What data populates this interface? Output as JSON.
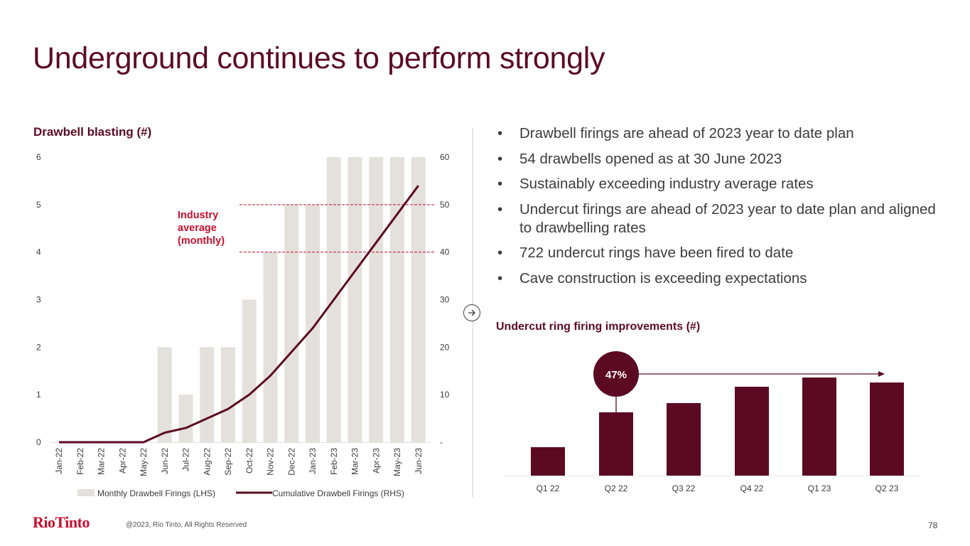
{
  "page": {
    "title": "Underground continues to perform strongly",
    "copyright": "@2023, Rio Tinto, All Rights Reserved",
    "logo_text": "RioTinto",
    "page_number": "78",
    "brand_color": "#5c0a23",
    "accent_color": "#c8102e"
  },
  "bullets": [
    "Drawbell firings are ahead of 2023 year to date plan",
    "54 drawbells opened as at 30 June 2023",
    "Sustainably exceeding industry average rates",
    "Undercut firings are ahead of 2023 year to date plan and aligned to drawbelling rates",
    "722 undercut rings have been fired to date",
    "Cave construction is exceeding expectations"
  ],
  "bullet_glyph": "•",
  "nav": {
    "arrow_icon": "arrow-right-circle-icon"
  },
  "chart_data": [
    {
      "type": "bar",
      "title": "Drawbell blasting (#)",
      "categories": [
        "Jan-22",
        "Feb-22",
        "Mar-22",
        "Apr-22",
        "May-22",
        "Jun-22",
        "Jul-22",
        "Aug-22",
        "Sep-22",
        "Oct-22",
        "Nov-22",
        "Dec-22",
        "Jan-23",
        "Feb-23",
        "Mar-23",
        "Apr-23",
        "May-23",
        "Jun-23"
      ],
      "series": [
        {
          "name": "Monthly Drawbell Firings  (LHS)",
          "type": "bar",
          "axis": "left",
          "color": "#e4e1dc",
          "values": [
            0,
            0,
            0,
            0,
            0,
            2,
            1,
            2,
            2,
            3,
            4,
            5,
            5,
            6,
            6,
            6,
            6,
            6
          ]
        },
        {
          "name": "Cumulative Drawbell Firings  (RHS)",
          "type": "line",
          "axis": "right",
          "color": "#5c0a23",
          "values": [
            0,
            0,
            0,
            0,
            0,
            2,
            3,
            5,
            7,
            10,
            14,
            19,
            24,
            30,
            36,
            42,
            48,
            54
          ]
        }
      ],
      "left_axis": {
        "range": [
          0,
          6
        ],
        "ticks": [
          "0",
          "1",
          "2",
          "3",
          "4",
          "5",
          "6"
        ]
      },
      "right_axis": {
        "range": [
          0,
          60
        ],
        "ticks": [
          "-",
          "10",
          "20",
          "30",
          "40",
          "50",
          "60"
        ]
      },
      "reference_lines": [
        {
          "axis": "right",
          "value": 50,
          "style": "dashed",
          "color": "#c8102e"
        },
        {
          "axis": "right",
          "value": 40,
          "style": "dashed",
          "color": "#c8102e"
        }
      ],
      "annotation": {
        "text_lines": [
          "Industry",
          "average",
          "(monthly)"
        ],
        "color": "#c8102e"
      },
      "legend": {
        "position": "bottom"
      },
      "grid": false
    },
    {
      "type": "bar",
      "title": "Undercut ring firing improvements (#)",
      "categories": [
        "Q1 22",
        "Q2 22",
        "Q3 22",
        "Q4 22",
        "Q1  23",
        "Q2  23"
      ],
      "values": [
        40,
        89,
        102,
        125,
        138,
        131
      ],
      "value_units": "relative (no axis shown)",
      "color": "#5c0a23",
      "annotation": {
        "text": "47%",
        "from_category": "Q2 22",
        "arrow_to": "Q2  23"
      },
      "grid": false
    }
  ]
}
